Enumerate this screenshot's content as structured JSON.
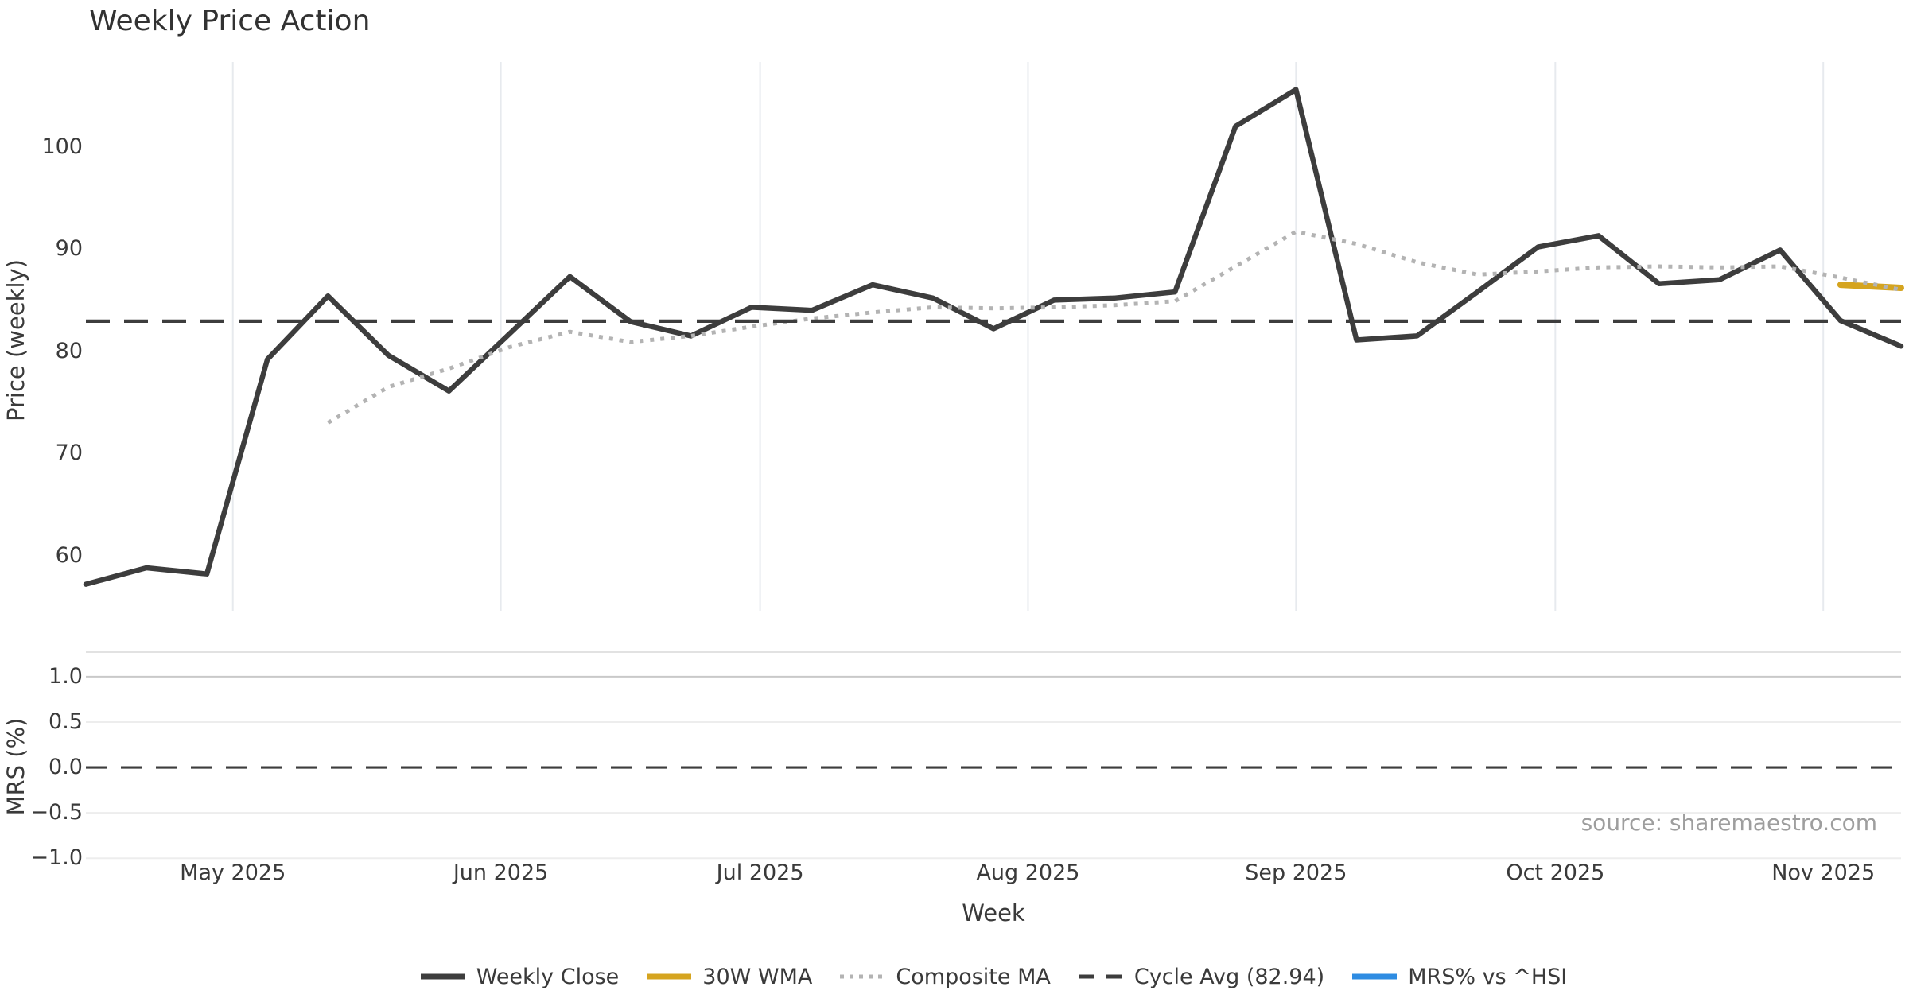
{
  "title": "Weekly Price Action",
  "source_note": "source: sharemaestro.com",
  "chart_data": {
    "type": "line",
    "title": "Weekly Price Action",
    "xlabel": "Week",
    "x_dates": [
      "2025-04-14",
      "2025-04-21",
      "2025-04-28",
      "2025-05-05",
      "2025-05-12",
      "2025-05-19",
      "2025-05-26",
      "2025-06-02",
      "2025-06-09",
      "2025-06-16",
      "2025-06-23",
      "2025-06-30",
      "2025-07-07",
      "2025-07-14",
      "2025-07-21",
      "2025-07-28",
      "2025-08-04",
      "2025-08-11",
      "2025-08-18",
      "2025-08-25",
      "2025-09-01",
      "2025-09-08",
      "2025-09-15",
      "2025-09-22",
      "2025-09-29",
      "2025-10-06",
      "2025-10-13",
      "2025-10-20",
      "2025-10-27",
      "2025-11-03",
      "2025-11-10"
    ],
    "month_ticks": [
      {
        "label": "May 2025",
        "date": "2025-05-01"
      },
      {
        "label": "Jun 2025",
        "date": "2025-06-01"
      },
      {
        "label": "Jul 2025",
        "date": "2025-07-01"
      },
      {
        "label": "Aug 2025",
        "date": "2025-08-01"
      },
      {
        "label": "Sep 2025",
        "date": "2025-09-01"
      },
      {
        "label": "Oct 2025",
        "date": "2025-10-01"
      },
      {
        "label": "Nov 2025",
        "date": "2025-11-01"
      }
    ],
    "panels": [
      {
        "ylabel": "Price (weekly)",
        "ylim": [
          54.6,
          108.3
        ],
        "yticks": [
          {
            "label": "100",
            "value": 100
          },
          {
            "label": "90",
            "value": 90
          },
          {
            "label": "80",
            "value": 80
          },
          {
            "label": "70",
            "value": 70
          },
          {
            "label": "60",
            "value": 60
          }
        ],
        "grid": "vertical-month-lines",
        "grid_color": "#e7eaee"
      },
      {
        "ylabel": "MRS (%)",
        "ylim": [
          -1.05,
          1.27
        ],
        "yticks": [
          {
            "label": "1.0",
            "value": 1.0
          },
          {
            "label": "0.5",
            "value": 0.5
          },
          {
            "label": "0.0",
            "value": 0.0
          },
          {
            "label": "−0.5",
            "value": -0.5
          },
          {
            "label": "−1.0",
            "value": -1.0
          }
        ],
        "grid": "horizontal-lines",
        "grid_color": "#ededed",
        "grid_color_top_tick": "#c9c9c9",
        "top_spine_color": "#e2e2e2",
        "zero_line": {
          "style": "dashed",
          "color": "#3d3d3d",
          "width": 3.2
        }
      }
    ],
    "series": [
      {
        "name": "Weekly Close",
        "panel": 0,
        "color": "#3d3d3d",
        "line_style": "solid",
        "line_width": 6.5,
        "values": [
          57.2,
          58.8,
          58.2,
          79.2,
          85.4,
          79.6,
          76.1,
          81.7,
          87.3,
          82.9,
          81.5,
          84.3,
          84.0,
          86.5,
          85.2,
          82.2,
          85.0,
          85.2,
          85.8,
          102.0,
          105.6,
          81.1,
          81.5,
          85.8,
          90.2,
          91.3,
          86.6,
          87.0,
          89.9,
          83.0,
          80.5
        ]
      },
      {
        "name": "30W WMA",
        "panel": 0,
        "color": "#d5a41f",
        "line_style": "solid",
        "line_width": 8,
        "values": [
          null,
          null,
          null,
          null,
          null,
          null,
          null,
          null,
          null,
          null,
          null,
          null,
          null,
          null,
          null,
          null,
          null,
          null,
          null,
          null,
          null,
          null,
          null,
          null,
          null,
          null,
          null,
          null,
          null,
          86.5,
          86.2
        ]
      },
      {
        "name": "Composite MA",
        "panel": 0,
        "color": "#b3b3b3",
        "line_style": "dotted",
        "line_width": 5,
        "values": [
          null,
          null,
          null,
          null,
          73.0,
          76.5,
          78.3,
          80.4,
          81.9,
          80.9,
          81.5,
          82.4,
          83.2,
          83.8,
          84.3,
          84.2,
          84.3,
          84.5,
          84.9,
          88.3,
          91.7,
          90.5,
          88.7,
          87.5,
          87.8,
          88.2,
          88.3,
          88.2,
          88.3,
          87.2,
          86.0
        ]
      },
      {
        "name": "Cycle Avg (82.94)",
        "panel": 0,
        "color": "#3d3d3d",
        "line_style": "dashed",
        "line_width": 4.3,
        "constant_value": 82.94
      },
      {
        "name": "MRS% vs ^HSI",
        "panel": 1,
        "color": "#2e8ce2",
        "line_style": "solid",
        "line_width": 5,
        "values": []
      }
    ],
    "legend": {
      "position": "bottom-center"
    }
  }
}
